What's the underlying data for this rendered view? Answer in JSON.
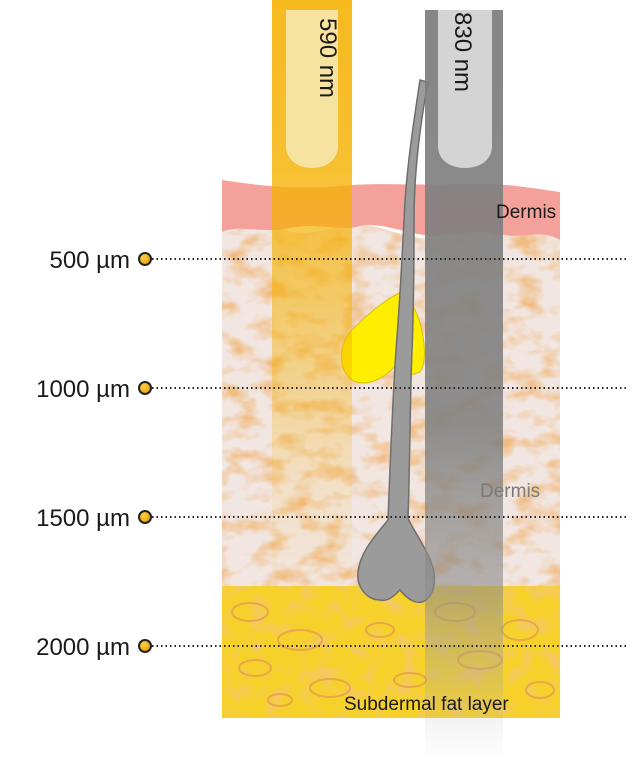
{
  "beams": [
    {
      "label": "590 nm",
      "color": "#f5b100",
      "cap_color": "#f7e3a0"
    },
    {
      "label": "830 nm",
      "color": "#8a8a8a",
      "cap_color": "#d4d4d4"
    }
  ],
  "layers": {
    "epidermis_label": "Dermis",
    "dermis_label": "Dermis",
    "fat_label": "Subdermal fat layer"
  },
  "depth_markers": [
    {
      "label": "500 µm",
      "value": 500
    },
    {
      "label": "1000 µm",
      "value": 1000
    },
    {
      "label": "1500 µm",
      "value": 1500
    },
    {
      "label": "2000 µm",
      "value": 2000
    }
  ],
  "colors": {
    "epidermis": "#f4a19c",
    "dermis_base": "#f1e6e2",
    "dermis_fibers": "#e08f4a",
    "fat": "#f6d12a",
    "fat_cells": "#e8a66c",
    "gland": "#ffee00",
    "hair": "#9b9b9b",
    "marker": "#f5b100"
  }
}
